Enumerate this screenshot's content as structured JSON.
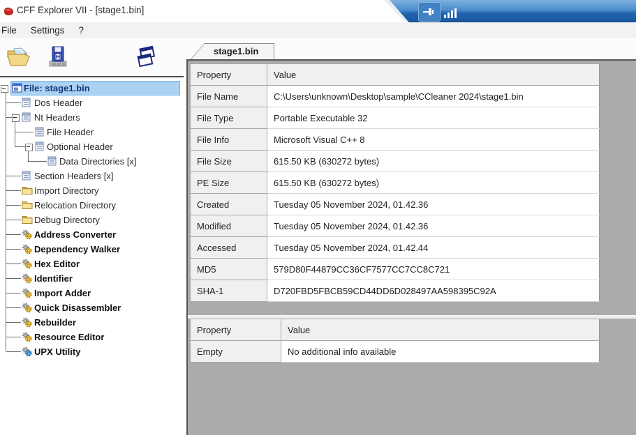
{
  "window": {
    "title": "CFF Explorer VII - [stage1.bin]"
  },
  "titlebar": {
    "icons": [
      "app-logo-icon",
      "pin-icon",
      "signal-bars-icon"
    ]
  },
  "menu": {
    "items": [
      "File",
      "Settings",
      "?"
    ]
  },
  "toolbar": {
    "buttons": [
      {
        "name": "open-file-icon"
      },
      {
        "name": "save-file-icon"
      },
      {
        "name": "cascade-windows-icon"
      }
    ]
  },
  "tab": {
    "label": "stage1.bin"
  },
  "tree": {
    "items": [
      {
        "label": "File: stage1.bin",
        "level": 0,
        "icon": "app",
        "bold": true,
        "selected": true,
        "expander": true
      },
      {
        "label": "Dos Header",
        "level": 1,
        "icon": "report"
      },
      {
        "label": "Nt Headers",
        "level": 1,
        "icon": "report",
        "expander": true
      },
      {
        "label": "File Header",
        "level": 2,
        "icon": "report"
      },
      {
        "label": "Optional Header",
        "level": 2,
        "icon": "report",
        "expander": true
      },
      {
        "label": "Data Directories [x]",
        "level": 3,
        "icon": "report"
      },
      {
        "label": "Section Headers [x]",
        "level": 1,
        "icon": "report"
      },
      {
        "label": "Import Directory",
        "level": 1,
        "icon": "folder"
      },
      {
        "label": "Relocation Directory",
        "level": 1,
        "icon": "folder"
      },
      {
        "label": "Debug Directory",
        "level": 1,
        "icon": "folder"
      },
      {
        "label": "Address Converter",
        "level": 1,
        "icon": "gears",
        "bold": true
      },
      {
        "label": "Dependency Walker",
        "level": 1,
        "icon": "gears",
        "bold": true
      },
      {
        "label": "Hex Editor",
        "level": 1,
        "icon": "gears",
        "bold": true
      },
      {
        "label": "Identifier",
        "level": 1,
        "icon": "gears",
        "bold": true
      },
      {
        "label": "Import Adder",
        "level": 1,
        "icon": "gears",
        "bold": true
      },
      {
        "label": "Quick Disassembler",
        "level": 1,
        "icon": "gears",
        "bold": true
      },
      {
        "label": "Rebuilder",
        "level": 1,
        "icon": "gears",
        "bold": true
      },
      {
        "label": "Resource Editor",
        "level": 1,
        "icon": "gears",
        "bold": true
      },
      {
        "label": "UPX Utility",
        "level": 1,
        "icon": "gearblue",
        "bold": true
      }
    ]
  },
  "main_table": {
    "headers": [
      "Property",
      "Value"
    ],
    "rows": [
      [
        "File Name",
        "C:\\Users\\unknown\\Desktop\\sample\\CCleaner 2024\\stage1.bin"
      ],
      [
        "File Type",
        "Portable Executable 32"
      ],
      [
        "File Info",
        "Microsoft Visual C++ 8"
      ],
      [
        "File Size",
        "615.50 KB (630272 bytes)"
      ],
      [
        "PE Size",
        "615.50 KB (630272 bytes)"
      ],
      [
        "Created",
        "Tuesday 05 November 2024, 01.42.36"
      ],
      [
        "Modified",
        "Tuesday 05 November 2024, 01.42.36"
      ],
      [
        "Accessed",
        "Tuesday 05 November 2024, 01.42.44"
      ],
      [
        "MD5",
        "579D80F44879CC36CF7577CC7CC8C721"
      ],
      [
        "SHA-1",
        "D720FBD5FBCB59CD44DD6D028497AA598395C92A"
      ]
    ]
  },
  "info_table": {
    "headers": [
      "Property",
      "Value"
    ],
    "rows": [
      [
        "Empty",
        "No additional info available"
      ]
    ]
  },
  "colors": {
    "titlebar_blue": "#2266ae",
    "selection_blue": "#a9d2f3",
    "mdi_background": "#ababab",
    "property_cell": "#f0f0f0"
  }
}
